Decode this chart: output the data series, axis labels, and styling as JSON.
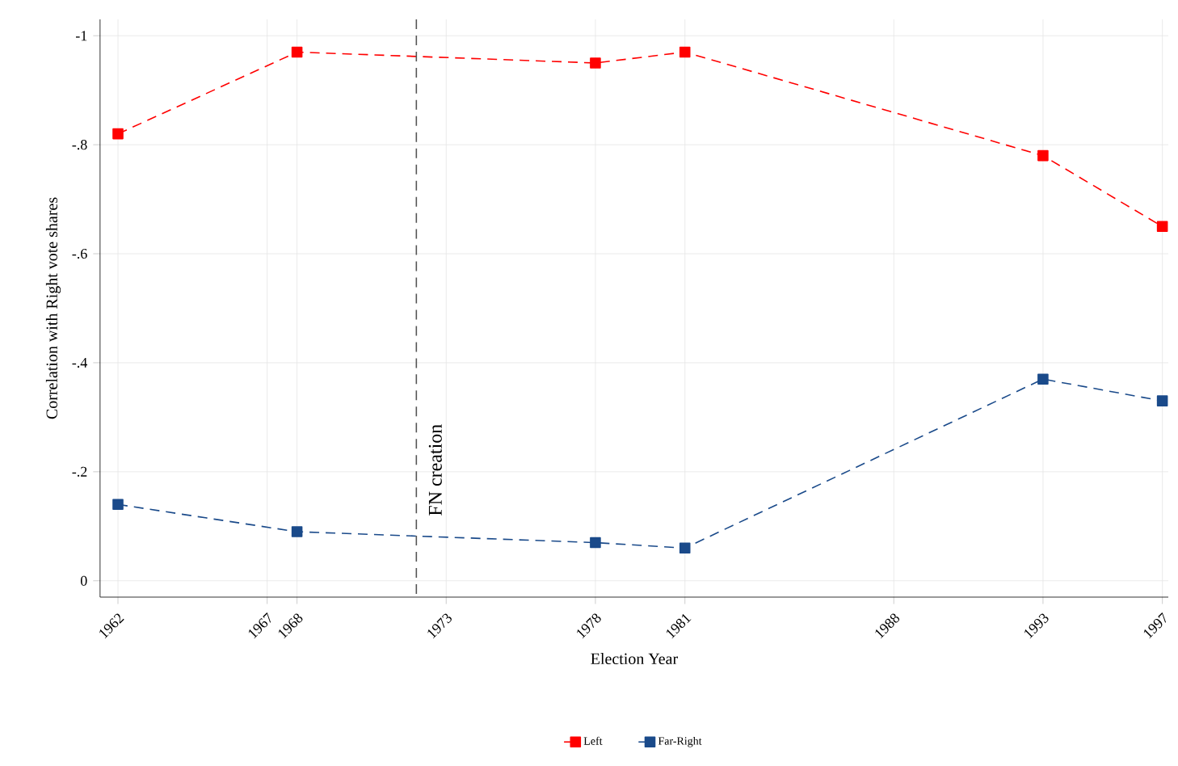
{
  "chart_data": {
    "type": "line",
    "xlabel": "Election Year",
    "ylabel": "Correlation with Right vote shares",
    "x": [
      1962,
      1968,
      1978,
      1981,
      1993,
      1997
    ],
    "series": [
      {
        "name": "Left",
        "color": "#ff0000",
        "values": [
          -0.82,
          -0.97,
          -0.95,
          -0.97,
          -0.78,
          -0.65
        ]
      },
      {
        "name": "Far-Right",
        "color": "#1a4a8a",
        "values": [
          -0.14,
          -0.09,
          -0.07,
          -0.06,
          -0.37,
          -0.33
        ]
      }
    ],
    "xlim": [
      1961.4,
      1997.2
    ],
    "ylim": [
      0.03,
      -1.03
    ],
    "xticks": [
      1962,
      1967,
      1968,
      1973,
      1978,
      1981,
      1988,
      1993,
      1997
    ],
    "yticks": [
      {
        "value": -1,
        "label": "-1"
      },
      {
        "value": -0.8,
        "label": "-.8"
      },
      {
        "value": -0.6,
        "label": "-.6"
      },
      {
        "value": -0.4,
        "label": "-.4"
      },
      {
        "value": -0.2,
        "label": "-.2"
      },
      {
        "value": 0,
        "label": "0"
      }
    ],
    "ref_lines": [
      {
        "axis": "x",
        "value": 1972,
        "label": "FN creation",
        "color": "#555555",
        "line_style": "dashed"
      }
    ],
    "grid": true,
    "legend": "bottom",
    "marker": "square",
    "line_style": "dashed"
  }
}
